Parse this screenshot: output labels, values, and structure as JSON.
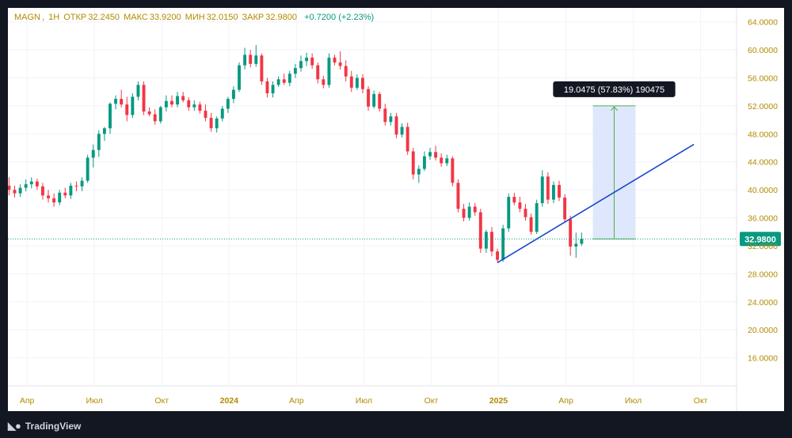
{
  "legend": {
    "symbol": "MAGN",
    "interval": "1H",
    "open_label": "ОТКР",
    "open": "32.2450",
    "high_label": "МАКС",
    "high": "33.9200",
    "low_label": "МИН",
    "low": "32.0150",
    "close_label": "ЗАКР",
    "close": "32.9800",
    "change": "+0.7200 (+2.23%)"
  },
  "measure_label": "19.0475 (57.83%) 190475",
  "last_price_label": "32.9800",
  "footer": {
    "brand": "TradingView",
    "logo_icon": "tradingview-logo-icon"
  },
  "colors": {
    "up": "#089981",
    "down": "#f23645",
    "trendline": "#1848cc",
    "measure_fill": "#d9e3fb",
    "measure_line": "#4caf50",
    "axis_text": "#b28b00",
    "price_tag": "#089981"
  },
  "chart_data": {
    "type": "candlestick",
    "y_axis": {
      "min": 12,
      "max": 66,
      "ticks": [
        "16.0000",
        "20.0000",
        "24.0000",
        "28.0000",
        "32.0000",
        "36.0000",
        "40.0000",
        "44.0000",
        "48.0000",
        "52.0000",
        "56.0000",
        "60.0000",
        "64.0000"
      ]
    },
    "x_axis": {
      "ticks": [
        {
          "label": "Апр",
          "t": 0.0,
          "bold": false
        },
        {
          "label": "Июл",
          "t": 3.0,
          "bold": false
        },
        {
          "label": "Окт",
          "t": 6.0,
          "bold": false
        },
        {
          "label": "2024",
          "t": 9.0,
          "bold": true
        },
        {
          "label": "Апр",
          "t": 12.0,
          "bold": false
        },
        {
          "label": "Июл",
          "t": 15.0,
          "bold": false
        },
        {
          "label": "Окт",
          "t": 18.0,
          "bold": false
        },
        {
          "label": "2025",
          "t": 21.0,
          "bold": true
        },
        {
          "label": "Апр",
          "t": 24.0,
          "bold": false
        },
        {
          "label": "Июл",
          "t": 27.0,
          "bold": false
        },
        {
          "label": "Окт",
          "t": 30.0,
          "bold": false
        }
      ],
      "domain": [
        -0.85,
        31.6
      ]
    },
    "last_price": 32.98,
    "ohlc": [
      [
        -0.8,
        40.6,
        41.8,
        39.2,
        40.0
      ],
      [
        -0.55,
        40.0,
        40.6,
        38.9,
        39.5
      ],
      [
        -0.3,
        39.5,
        40.8,
        39.0,
        40.3
      ],
      [
        -0.05,
        40.3,
        41.5,
        39.8,
        40.8
      ],
      [
        0.2,
        40.8,
        41.8,
        40.2,
        41.2
      ],
      [
        0.45,
        41.2,
        41.6,
        40.0,
        40.5
      ],
      [
        0.7,
        40.5,
        41.0,
        38.6,
        39.2
      ],
      [
        0.95,
        39.2,
        40.0,
        38.2,
        38.8
      ],
      [
        1.2,
        38.8,
        39.5,
        37.6,
        38.2
      ],
      [
        1.45,
        38.2,
        40.0,
        37.8,
        39.6
      ],
      [
        1.7,
        39.6,
        40.3,
        38.8,
        39.2
      ],
      [
        1.95,
        39.2,
        41.0,
        38.7,
        40.6
      ],
      [
        2.2,
        40.6,
        41.2,
        39.8,
        40.5
      ],
      [
        2.45,
        40.5,
        41.8,
        39.8,
        41.3
      ],
      [
        2.7,
        41.3,
        45.0,
        41.0,
        44.6
      ],
      [
        2.95,
        44.6,
        46.5,
        43.2,
        45.7
      ],
      [
        3.2,
        45.7,
        48.5,
        44.7,
        48.0
      ],
      [
        3.45,
        48.0,
        49.0,
        47.0,
        48.8
      ],
      [
        3.7,
        48.8,
        52.5,
        48.0,
        52.3
      ],
      [
        3.95,
        52.3,
        53.5,
        51.5,
        53.0
      ],
      [
        4.2,
        53.0,
        54.3,
        51.8,
        52.2
      ],
      [
        4.45,
        52.2,
        53.3,
        49.8,
        50.7
      ],
      [
        4.7,
        50.7,
        53.8,
        50.3,
        53.3
      ],
      [
        4.95,
        53.3,
        55.5,
        52.8,
        55.0
      ],
      [
        5.2,
        55.0,
        55.5,
        50.7,
        51.2
      ],
      [
        5.45,
        51.2,
        51.8,
        50.5,
        50.8
      ],
      [
        5.7,
        50.8,
        51.5,
        49.3,
        49.8
      ],
      [
        5.95,
        49.8,
        52.0,
        49.5,
        51.8
      ],
      [
        6.2,
        51.8,
        53.5,
        51.2,
        52.7
      ],
      [
        6.45,
        52.7,
        53.5,
        51.8,
        52.2
      ],
      [
        6.7,
        52.2,
        54.0,
        51.8,
        53.4
      ],
      [
        6.95,
        53.4,
        54.0,
        52.5,
        52.8
      ],
      [
        7.2,
        52.8,
        53.2,
        51.3,
        51.8
      ],
      [
        7.45,
        51.8,
        52.8,
        51.3,
        52.2
      ],
      [
        7.7,
        52.2,
        52.6,
        50.9,
        51.3
      ],
      [
        7.95,
        51.3,
        52.2,
        49.8,
        50.3
      ],
      [
        8.2,
        50.3,
        51.0,
        48.3,
        48.8
      ],
      [
        8.45,
        48.8,
        50.5,
        48.2,
        50.2
      ],
      [
        8.7,
        50.2,
        52.0,
        49.8,
        51.6
      ],
      [
        8.95,
        51.6,
        53.3,
        51.0,
        53.0
      ],
      [
        9.2,
        53.0,
        54.8,
        52.4,
        54.3
      ],
      [
        9.45,
        54.3,
        58.2,
        54.0,
        57.8
      ],
      [
        9.7,
        57.8,
        60.3,
        57.2,
        59.3
      ],
      [
        9.95,
        59.3,
        60.0,
        57.5,
        58.0
      ],
      [
        10.2,
        58.0,
        60.7,
        57.6,
        59.2
      ],
      [
        10.45,
        59.2,
        59.5,
        55.0,
        55.5
      ],
      [
        10.7,
        55.5,
        56.0,
        53.2,
        53.8
      ],
      [
        10.95,
        53.8,
        55.5,
        53.2,
        55.0
      ],
      [
        11.2,
        55.0,
        56.2,
        54.7,
        55.8
      ],
      [
        11.45,
        55.8,
        56.6,
        55.0,
        55.3
      ],
      [
        11.7,
        55.3,
        57.0,
        54.8,
        56.6
      ],
      [
        11.95,
        56.6,
        58.0,
        56.0,
        57.4
      ],
      [
        12.2,
        57.4,
        59.2,
        56.9,
        58.4
      ],
      [
        12.45,
        58.4,
        59.6,
        57.7,
        58.9
      ],
      [
        12.7,
        58.9,
        59.5,
        57.3,
        57.8
      ],
      [
        12.95,
        57.8,
        58.2,
        55.2,
        55.8
      ],
      [
        13.2,
        55.8,
        56.3,
        54.5,
        55.0
      ],
      [
        13.45,
        55.0,
        59.5,
        54.6,
        58.9
      ],
      [
        13.7,
        58.9,
        59.3,
        57.8,
        58.2
      ],
      [
        13.95,
        58.2,
        59.8,
        57.2,
        57.7
      ],
      [
        14.2,
        57.7,
        58.5,
        55.5,
        56.2
      ],
      [
        14.45,
        56.2,
        57.0,
        54.0,
        54.6
      ],
      [
        14.7,
        54.6,
        56.5,
        54.3,
        56.0
      ],
      [
        14.95,
        56.0,
        56.5,
        53.8,
        54.4
      ],
      [
        15.2,
        54.4,
        54.8,
        51.3,
        51.9
      ],
      [
        15.45,
        51.9,
        54.2,
        51.6,
        53.7
      ],
      [
        15.7,
        53.7,
        54.0,
        51.2,
        51.6
      ],
      [
        15.95,
        51.6,
        52.3,
        49.2,
        49.7
      ],
      [
        16.2,
        49.7,
        51.0,
        49.2,
        50.5
      ],
      [
        16.45,
        50.5,
        51.0,
        47.4,
        47.9
      ],
      [
        16.7,
        47.9,
        49.5,
        47.5,
        49.0
      ],
      [
        16.95,
        49.0,
        49.6,
        45.0,
        45.5
      ],
      [
        17.2,
        45.5,
        46.0,
        41.5,
        42.2
      ],
      [
        17.45,
        42.2,
        43.5,
        41.0,
        43.0
      ],
      [
        17.7,
        43.0,
        45.5,
        42.7,
        44.8
      ],
      [
        17.95,
        44.8,
        46.0,
        44.3,
        45.4
      ],
      [
        18.2,
        45.4,
        46.3,
        44.2,
        44.6
      ],
      [
        18.45,
        44.6,
        45.2,
        43.3,
        43.8
      ],
      [
        18.7,
        43.8,
        45.0,
        43.4,
        44.5
      ],
      [
        18.95,
        44.5,
        44.8,
        40.5,
        41.0
      ],
      [
        19.2,
        41.0,
        41.5,
        36.8,
        37.3
      ],
      [
        19.45,
        37.3,
        38.0,
        35.5,
        36.0
      ],
      [
        19.7,
        36.0,
        38.2,
        35.6,
        37.6
      ],
      [
        19.95,
        37.6,
        38.1,
        36.3,
        36.8
      ],
      [
        20.2,
        36.8,
        37.3,
        31.0,
        31.6
      ],
      [
        20.45,
        31.6,
        34.3,
        31.0,
        34.0
      ],
      [
        20.7,
        34.0,
        34.7,
        30.5,
        31.2
      ],
      [
        20.95,
        31.2,
        31.6,
        29.6,
        30.0
      ],
      [
        21.2,
        30.0,
        35.0,
        29.7,
        34.5
      ],
      [
        21.45,
        34.5,
        39.5,
        34.0,
        39.0
      ],
      [
        21.7,
        39.0,
        39.6,
        37.8,
        38.2
      ],
      [
        21.95,
        38.2,
        39.0,
        36.8,
        37.3
      ],
      [
        22.2,
        37.3,
        38.0,
        35.6,
        36.1
      ],
      [
        22.45,
        36.1,
        36.6,
        33.6,
        34.0
      ],
      [
        22.7,
        34.0,
        38.6,
        33.7,
        38.1
      ],
      [
        22.95,
        38.1,
        42.8,
        37.6,
        41.9
      ],
      [
        23.2,
        41.9,
        42.5,
        38.0,
        38.6
      ],
      [
        23.45,
        38.6,
        41.2,
        38.1,
        40.7
      ],
      [
        23.7,
        40.7,
        41.3,
        38.4,
        38.9
      ],
      [
        23.95,
        38.9,
        39.4,
        35.3,
        35.8
      ],
      [
        24.2,
        35.8,
        36.3,
        30.6,
        31.9
      ],
      [
        24.45,
        31.9,
        33.9,
        30.3,
        32.3
      ],
      [
        24.7,
        32.3,
        33.9,
        32.0,
        32.98
      ]
    ],
    "trendline": {
      "from": [
        20.95,
        29.6
      ],
      "to": [
        29.7,
        46.5
      ]
    },
    "measure": {
      "t0": 25.2,
      "t1": 27.1,
      "from": 32.98,
      "to": 52.0,
      "change": 19.0475,
      "percent": 57.83
    }
  }
}
